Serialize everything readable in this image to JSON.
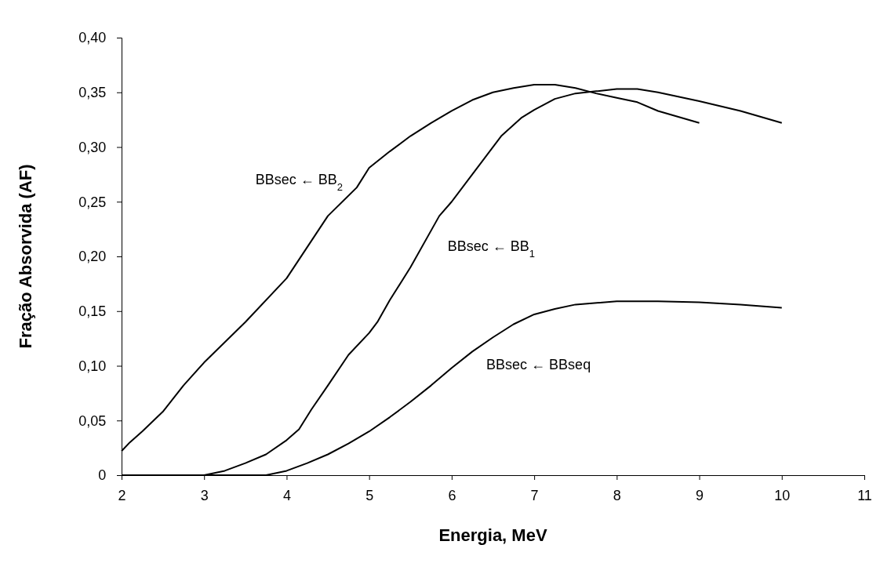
{
  "chart_data": {
    "type": "line",
    "xlabel": "Energia, MeV",
    "ylabel": "Fração Absorvida (AF)",
    "xlim": [
      2,
      11
    ],
    "ylim": [
      0,
      0.4
    ],
    "xticks": [
      2,
      3,
      4,
      5,
      6,
      7,
      8,
      9,
      10,
      11
    ],
    "yticks": [
      0,
      {
        "value": 0.05,
        "label": "0,05"
      },
      {
        "value": 0.1,
        "label": "0,10"
      },
      {
        "value": 0.15,
        "label": "0,15"
      },
      {
        "value": 0.2,
        "label": "0,20"
      },
      {
        "value": 0.25,
        "label": "0,25"
      },
      {
        "value": 0.3,
        "label": "0,30"
      },
      {
        "value": 0.35,
        "label": "0,35"
      },
      {
        "value": 0.4,
        "label": "0,40"
      }
    ],
    "grid": false,
    "legend": false,
    "marker": "none",
    "line_style": "solid",
    "series": [
      {
        "name": "BBsec ← BB$_{2}$",
        "color": "#000000",
        "x": [
          2,
          2.1,
          2.25,
          2.5,
          2.75,
          3,
          3.5,
          4,
          4.5,
          4.85,
          5,
          5.25,
          5.5,
          5.75,
          6,
          6.25,
          6.5,
          6.75,
          7,
          7.25,
          7.5,
          7.75,
          8,
          8.25,
          8.5,
          9
        ],
        "values": [
          0.022,
          0.03,
          0.04,
          0.058,
          0.082,
          0.103,
          0.14,
          0.18,
          0.237,
          0.263,
          0.281,
          0.296,
          0.31,
          0.322,
          0.333,
          0.343,
          0.35,
          0.354,
          0.357,
          0.357,
          0.354,
          0.349,
          0.345,
          0.341,
          0.333,
          0.322
        ]
      },
      {
        "name": "BBsec ← BB$_{1}$",
        "color": "#000000",
        "x": [
          2,
          3,
          3.25,
          3.5,
          3.75,
          4,
          4.15,
          4.3,
          4.5,
          4.75,
          5,
          5.1,
          5.25,
          5.5,
          5.85,
          6,
          6.25,
          6.6,
          6.85,
          7,
          7.25,
          7.5,
          7.75,
          8,
          8.25,
          8.5,
          9,
          9.5,
          10
        ],
        "values": [
          0,
          0,
          0.004,
          0.011,
          0.019,
          0.032,
          0.042,
          0.06,
          0.082,
          0.11,
          0.13,
          0.14,
          0.16,
          0.19,
          0.237,
          0.25,
          0.275,
          0.31,
          0.327,
          0.334,
          0.344,
          0.349,
          0.351,
          0.353,
          0.353,
          0.35,
          0.342,
          0.333,
          0.322
        ]
      },
      {
        "name": "BBsec ← BBseq",
        "color": "#000000",
        "x": [
          2,
          3.75,
          4,
          4.25,
          4.5,
          4.75,
          5,
          5.25,
          5.5,
          5.75,
          6,
          6.25,
          6.5,
          6.75,
          7,
          7.25,
          7.5,
          8,
          8.5,
          9,
          9.5,
          10
        ],
        "values": [
          0,
          0,
          0.004,
          0.011,
          0.019,
          0.029,
          0.04,
          0.053,
          0.067,
          0.082,
          0.098,
          0.113,
          0.126,
          0.138,
          0.147,
          0.152,
          0.156,
          0.159,
          0.159,
          0.158,
          0.156,
          0.153
        ]
      }
    ]
  }
}
